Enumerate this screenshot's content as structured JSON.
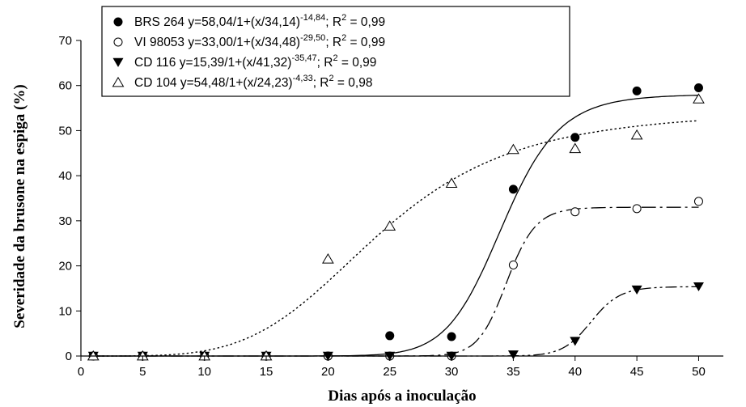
{
  "chart_data": {
    "type": "scatter",
    "xlabel": "Dias após a inoculação",
    "ylabel": "Severidade da brusone na espiga (%)",
    "xlim": [
      0,
      52
    ],
    "ylim": [
      0,
      70
    ],
    "xticks": [
      0,
      5,
      10,
      15,
      20,
      25,
      30,
      35,
      40,
      45,
      50
    ],
    "yticks": [
      0,
      10,
      20,
      30,
      40,
      50,
      60,
      70
    ],
    "legend_position": "top-left",
    "grid": false,
    "series": [
      {
        "name": "BRS 264",
        "marker": "filled-circle",
        "line_style": "solid",
        "fit": {
          "a": 58.04,
          "b": 34.14,
          "c": -14.84
        },
        "equation": {
          "lead": "BRS 264  y=58,04/1+(x/34,14)",
          "exp": "-14,84",
          "tail": "; R",
          "r2sup": "2",
          "r2val": " = 0,99"
        },
        "x": [
          1,
          5,
          10,
          15,
          20,
          25,
          30,
          35,
          40,
          45,
          50
        ],
        "y": [
          0,
          0,
          0,
          0,
          0,
          4.5,
          4.3,
          37,
          48.5,
          58.8,
          59.5
        ]
      },
      {
        "name": "VI 98053",
        "marker": "open-circle",
        "line_style": "dash-dot",
        "fit": {
          "a": 33.0,
          "b": 34.48,
          "c": -29.5
        },
        "equation": {
          "lead": "VI 98053   y=33,00/1+(x/34,48)",
          "exp": "-29,50",
          "tail": "; R",
          "r2sup": "2",
          "r2val": " = 0,99"
        },
        "x": [
          1,
          5,
          10,
          15,
          20,
          25,
          30,
          35,
          40,
          45,
          50
        ],
        "y": [
          0,
          0,
          0,
          0,
          0,
          0,
          0,
          20.2,
          32,
          32.7,
          34.3
        ]
      },
      {
        "name": "CD 116",
        "marker": "filled-triangle-down",
        "line_style": "dash-dot-dot",
        "fit": {
          "a": 15.39,
          "b": 41.32,
          "c": -35.47
        },
        "equation": {
          "lead": "CD 116   y=15,39/1+(x/41,32)",
          "exp": "-35,47",
          "tail": "; R",
          "r2sup": "2",
          "r2val": " = 0,99"
        },
        "x": [
          1,
          5,
          10,
          15,
          20,
          25,
          30,
          35,
          40,
          45,
          50
        ],
        "y": [
          0,
          0,
          0,
          0,
          0,
          0,
          0,
          0.3,
          3.3,
          14.7,
          15.4
        ]
      },
      {
        "name": "CD 104",
        "marker": "open-triangle-up",
        "line_style": "dotted",
        "fit": {
          "a": 54.48,
          "b": 24.23,
          "c": -4.33
        },
        "equation": {
          "lead": "CD 104   y=54,48/1+(x/24,23)",
          "exp": "-4,33",
          "tail": "; R",
          "r2sup": "2",
          "r2val": " = 0,98"
        },
        "x": [
          1,
          5,
          10,
          15,
          20,
          25,
          30,
          35,
          40,
          45,
          50
        ],
        "y": [
          0,
          0,
          0,
          0,
          21.5,
          28.8,
          38.3,
          45.8,
          46,
          49,
          57
        ]
      }
    ]
  }
}
